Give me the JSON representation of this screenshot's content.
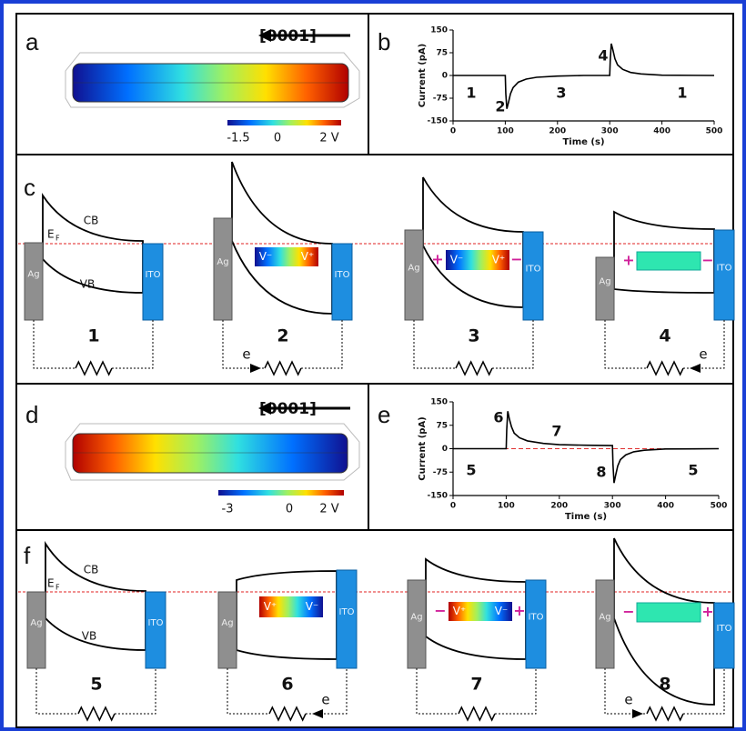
{
  "figure": {
    "a": {
      "label": "a",
      "direction": "[0001]",
      "colorbar": [
        "-1.5",
        "0",
        "2 V"
      ]
    },
    "c": {
      "label": "c",
      "cb": "CB",
      "vb": "VB",
      "ef": "E",
      "ef_sub": "F",
      "states": [
        {
          "number": "1",
          "left": "Ag",
          "right": "ITO"
        },
        {
          "number": "2",
          "left": "Ag",
          "right": "ITO",
          "charges": [
            "V⁻",
            "V⁺"
          ],
          "electron": "e"
        },
        {
          "number": "3",
          "left": "Ag",
          "right": "ITO",
          "charges": [
            "V⁻",
            "V⁺"
          ],
          "signs": [
            "+",
            "−"
          ]
        },
        {
          "number": "4",
          "left": "Ag",
          "right": "ITO",
          "signs": [
            "+",
            "−"
          ],
          "electron": "e"
        }
      ]
    },
    "d": {
      "label": "d",
      "direction": "[0001]",
      "colorbar": [
        "-3",
        "0",
        "2 V"
      ]
    },
    "f": {
      "label": "f",
      "cb": "CB",
      "vb": "VB",
      "ef": "E",
      "ef_sub": "F",
      "states": [
        {
          "number": "5",
          "left": "Ag",
          "right": "ITO"
        },
        {
          "number": "6",
          "left": "Ag",
          "right": "ITO",
          "charges": [
            "V⁺",
            "V⁻"
          ],
          "electron": "e"
        },
        {
          "number": "7",
          "left": "Ag",
          "right": "ITO",
          "charges": [
            "V⁺",
            "V⁻"
          ],
          "signs": [
            "−",
            "+"
          ]
        },
        {
          "number": "8",
          "left": "Ag",
          "right": "ITO",
          "signs": [
            "−",
            "+"
          ],
          "electron": "e"
        }
      ]
    }
  },
  "chart_data": [
    {
      "type": "line",
      "panel_label": "b",
      "x_label": "Time (s)",
      "y_label": "Current (pA)",
      "x": [
        0,
        100,
        101,
        103,
        106,
        110,
        115,
        125,
        140,
        160,
        200,
        250,
        300,
        301,
        303,
        306,
        310,
        315,
        325,
        340,
        360,
        400,
        500
      ],
      "series": [
        {
          "color": "#000000",
          "values": [
            0,
            0,
            -60,
            -110,
            -90,
            -60,
            -40,
            -22,
            -12,
            -6,
            -2,
            0,
            0,
            50,
            105,
            85,
            55,
            35,
            20,
            10,
            5,
            1,
            0
          ]
        }
      ],
      "annotations": [
        "1",
        "2",
        "3",
        "4",
        "1"
      ],
      "xlim": [
        0,
        500
      ],
      "xticks": [
        0,
        100,
        200,
        300,
        400,
        500
      ],
      "ylim": [
        -150,
        150
      ],
      "yticks": [
        -150,
        -75,
        0,
        75,
        150
      ]
    },
    {
      "type": "line",
      "panel_label": "e",
      "x_label": "Time (s)",
      "y_label": "Current (pA)",
      "x": [
        0,
        100,
        101,
        103,
        106,
        110,
        115,
        125,
        140,
        170,
        200,
        250,
        300,
        301,
        303,
        306,
        310,
        315,
        325,
        340,
        360,
        400,
        500
      ],
      "series": [
        {
          "color": "#000000",
          "values": [
            0,
            0,
            60,
            120,
            95,
            70,
            50,
            35,
            25,
            17,
            13,
            11,
            10,
            -50,
            -110,
            -85,
            -55,
            -35,
            -20,
            -10,
            -5,
            -1,
            0
          ]
        }
      ],
      "annotations": [
        "5",
        "6",
        "7",
        "8",
        "5"
      ],
      "hline": {
        "value": 0,
        "color": "#e03030"
      },
      "xlim": [
        0,
        500
      ],
      "xticks": [
        0,
        100,
        200,
        300,
        400,
        500
      ],
      "ylim": [
        -150,
        150
      ],
      "yticks": [
        -150,
        -75,
        0,
        75,
        150
      ]
    }
  ]
}
